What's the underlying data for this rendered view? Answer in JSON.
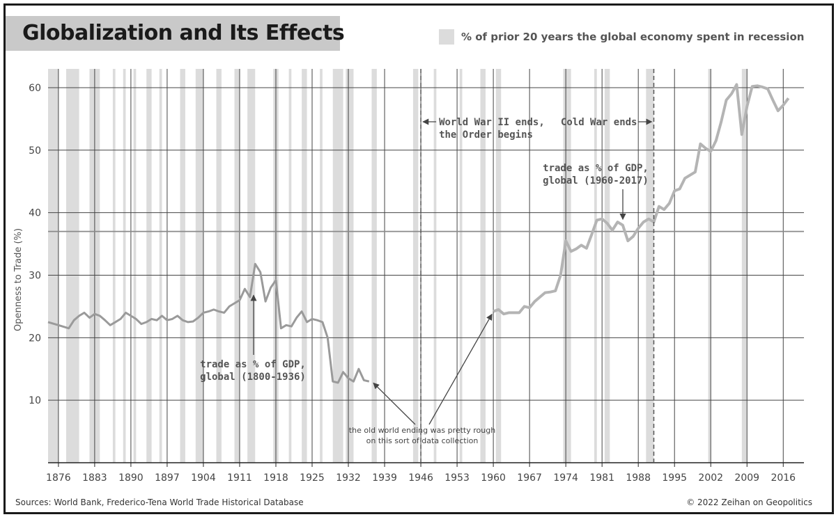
{
  "header": {
    "title": "Globalization and Its Effects",
    "legend_label": "% of prior 20 years the global economy spent in recession"
  },
  "footer": {
    "sources": "Sources: World Bank, Frederico-Tena World Trade Historical Database",
    "copyright": "© 2022 Zeihan on Geopolitics"
  },
  "colors": {
    "recession_band": "#dcdcdc",
    "historical_line": "#9a9a9a",
    "modern_line": "#b4b4b4",
    "recession_pct_line": "#8a8a8a",
    "gridline": "#444444"
  },
  "chart_data": {
    "type": "line",
    "title": "Globalization and Its Effects",
    "ylabel": "Openness to Trade (%)",
    "xlabel": "",
    "xlim": [
      1874,
      2020
    ],
    "ylim": [
      0,
      63
    ],
    "x_ticks": [
      1876,
      1883,
      1890,
      1897,
      1904,
      1911,
      1918,
      1925,
      1932,
      1939,
      1946,
      1953,
      1960,
      1967,
      1974,
      1981,
      1988,
      1995,
      2002,
      2009,
      2016
    ],
    "y_ticks": [
      10,
      20,
      30,
      40,
      50,
      60
    ],
    "grid": true,
    "legend": [
      {
        "name": "% of prior 20 years the global economy spent in recession",
        "kind": "band"
      }
    ],
    "recession_bands": [
      [
        1874,
        1876
      ],
      [
        1877.5,
        1880
      ],
      [
        1882,
        1884
      ],
      [
        1886.5,
        1887
      ],
      [
        1888.5,
        1889
      ],
      [
        1890.5,
        1891
      ],
      [
        1893,
        1894
      ],
      [
        1895.5,
        1896
      ],
      [
        1899.5,
        1900.5
      ],
      [
        1902.5,
        1904
      ],
      [
        1906.5,
        1907.5
      ],
      [
        1910,
        1911
      ],
      [
        1912.5,
        1914
      ],
      [
        1917.5,
        1918.5
      ],
      [
        1920.5,
        1921
      ],
      [
        1923,
        1924
      ],
      [
        1926.5,
        1927
      ],
      [
        1929,
        1931
      ],
      [
        1931.5,
        1933
      ],
      [
        1936.5,
        1937.5
      ],
      [
        1944.5,
        1945.5
      ],
      [
        1948.5,
        1949
      ],
      [
        1953.5,
        1954
      ],
      [
        1957.5,
        1958.5
      ],
      [
        1960.5,
        1961.5
      ],
      [
        1973.5,
        1975
      ],
      [
        1979.5,
        1980
      ],
      [
        1981.5,
        1982.5
      ],
      [
        1989.5,
        1991
      ],
      [
        2001.5,
        2002
      ],
      [
        2008,
        2009
      ]
    ],
    "series": [
      {
        "name": "trade as % of GDP, global (1800-1936)",
        "x": [
          1874,
          1876,
          1878,
          1879,
          1880,
          1881,
          1882,
          1883,
          1884,
          1885,
          1886,
          1887,
          1888,
          1889,
          1890,
          1891,
          1892,
          1893,
          1894,
          1895,
          1896,
          1897,
          1898,
          1899,
          1900,
          1901,
          1902,
          1903,
          1904,
          1905,
          1906,
          1907,
          1908,
          1909,
          1910,
          1911,
          1912,
          1913,
          1914,
          1915,
          1916,
          1917,
          1918,
          1919,
          1920,
          1921,
          1922,
          1923,
          1924,
          1925,
          1926,
          1927,
          1928,
          1929,
          1930,
          1931,
          1932,
          1933,
          1934,
          1935,
          1936
        ],
        "values": [
          22.5,
          22,
          21.5,
          22.8,
          23.5,
          24,
          23.2,
          23.8,
          23.5,
          22.8,
          22,
          22.5,
          23,
          24,
          23.5,
          23,
          22.2,
          22.5,
          23,
          22.8,
          23.5,
          22.8,
          23,
          23.5,
          22.8,
          22.5,
          22.6,
          23.2,
          24,
          24.2,
          24.5,
          24.2,
          24,
          25,
          25.5,
          26,
          27.8,
          26.5,
          31.8,
          30.5,
          25.8,
          28,
          29.2,
          21.5,
          22,
          21.8,
          23.2,
          24.2,
          22.5,
          23,
          22.8,
          22.5,
          20,
          13,
          12.8,
          14.5,
          13.5,
          13,
          15,
          13.2,
          13
        ]
      },
      {
        "name": "trade as % of GDP, global (1960-2017)",
        "x": [
          1960,
          1961,
          1962,
          1963,
          1964,
          1965,
          1966,
          1967,
          1968,
          1969,
          1970,
          1971,
          1972,
          1973,
          1974,
          1975,
          1976,
          1977,
          1978,
          1979,
          1980,
          1981,
          1982,
          1983,
          1984,
          1985,
          1986,
          1987,
          1988,
          1989,
          1990,
          1991,
          1992,
          1993,
          1994,
          1995,
          1996,
          1997,
          1998,
          1999,
          2000,
          2001,
          2002,
          2003,
          2004,
          2005,
          2006,
          2007,
          2008,
          2009,
          2010,
          2011,
          2012,
          2013,
          2014,
          2015,
          2016,
          2017
        ],
        "values": [
          24.2,
          24.5,
          23.8,
          24,
          24,
          24,
          25,
          24.8,
          25.8,
          26.5,
          27.2,
          27.3,
          27.5,
          30,
          35.5,
          33.8,
          34.2,
          34.8,
          34.3,
          36.5,
          38.8,
          39,
          38.3,
          37.2,
          38.5,
          38,
          35.5,
          36.2,
          37.5,
          38.5,
          39,
          38.5,
          41,
          40.5,
          41.5,
          43.5,
          43.8,
          45.5,
          46,
          46.5,
          51,
          50.3,
          49.8,
          51.5,
          54.5,
          58,
          59,
          60.5,
          52.5,
          57,
          60.2,
          60.3,
          60.1,
          59.8,
          58,
          56.3,
          57.2,
          58.3
        ]
      },
      {
        "name": "% of prior 20 years the global economy spent in recession",
        "x": [
          1874,
          1880,
          1883,
          1885,
          1886,
          1888,
          1889,
          1890,
          1891,
          1892,
          1893,
          1894,
          1896,
          1897,
          1898,
          1899,
          1900,
          1901,
          1902,
          1903,
          1904,
          1905,
          1906,
          1907,
          1908,
          1909,
          1910,
          1911,
          1914,
          1915,
          1916,
          1917,
          1918,
          1919,
          1920,
          1921,
          1923,
          1924,
          1925,
          1926,
          1927,
          1928,
          1929,
          1931,
          1932,
          1934,
          1935,
          1937,
          1938,
          1939,
          1940,
          1942,
          1943,
          1944,
          1945,
          1946,
          1947,
          1948,
          1949,
          1950,
          1952,
          1953,
          1954,
          1957,
          1958,
          1959,
          1960,
          1961,
          1962,
          1966,
          1967,
          1970,
          1971,
          1972,
          1974,
          1975,
          1978,
          1979,
          1980,
          1981,
          1982,
          1990,
          1991,
          1992,
          1995,
          2001,
          2002,
          2003,
          2008,
          2009,
          2010,
          2011,
          2020
        ],
        "values": [
          37,
          37,
          37,
          37,
          37,
          37,
          37,
          37,
          37,
          37,
          37,
          37,
          37,
          37,
          37,
          37,
          37,
          37,
          37,
          37,
          37,
          37,
          37,
          37,
          37,
          37,
          37,
          37,
          37,
          37,
          37,
          37,
          37,
          37,
          37,
          37,
          37,
          37,
          37,
          37,
          37,
          37,
          37,
          37,
          37,
          37,
          37,
          37,
          37,
          37,
          37,
          37,
          37,
          37,
          37,
          37,
          37,
          37,
          37,
          37,
          37,
          37,
          37,
          37,
          37,
          37,
          37,
          37,
          37,
          37,
          37,
          37,
          37,
          37,
          37,
          37,
          37,
          37,
          37,
          37,
          37,
          37,
          37,
          37,
          37,
          37,
          37,
          37,
          37,
          37,
          37,
          37,
          37
        ]
      }
    ],
    "annotations": [
      {
        "id": "ww2",
        "x": 1946,
        "text_lines": [
          "World War II ends,",
          "the Order begins"
        ]
      },
      {
        "id": "coldwar",
        "x": 1991,
        "text_lines": [
          "Cold War ends"
        ]
      },
      {
        "id": "label_modern",
        "text_lines": [
          "trade as % of GDP,",
          "global (1960-2017)"
        ]
      },
      {
        "id": "label_hist",
        "text_lines": [
          "trade as % of GDP,",
          "global (1800-1936)"
        ]
      },
      {
        "id": "rough_note",
        "text_lines": [
          "the old world ending was pretty rough",
          "on this sort of data collection"
        ]
      }
    ]
  }
}
